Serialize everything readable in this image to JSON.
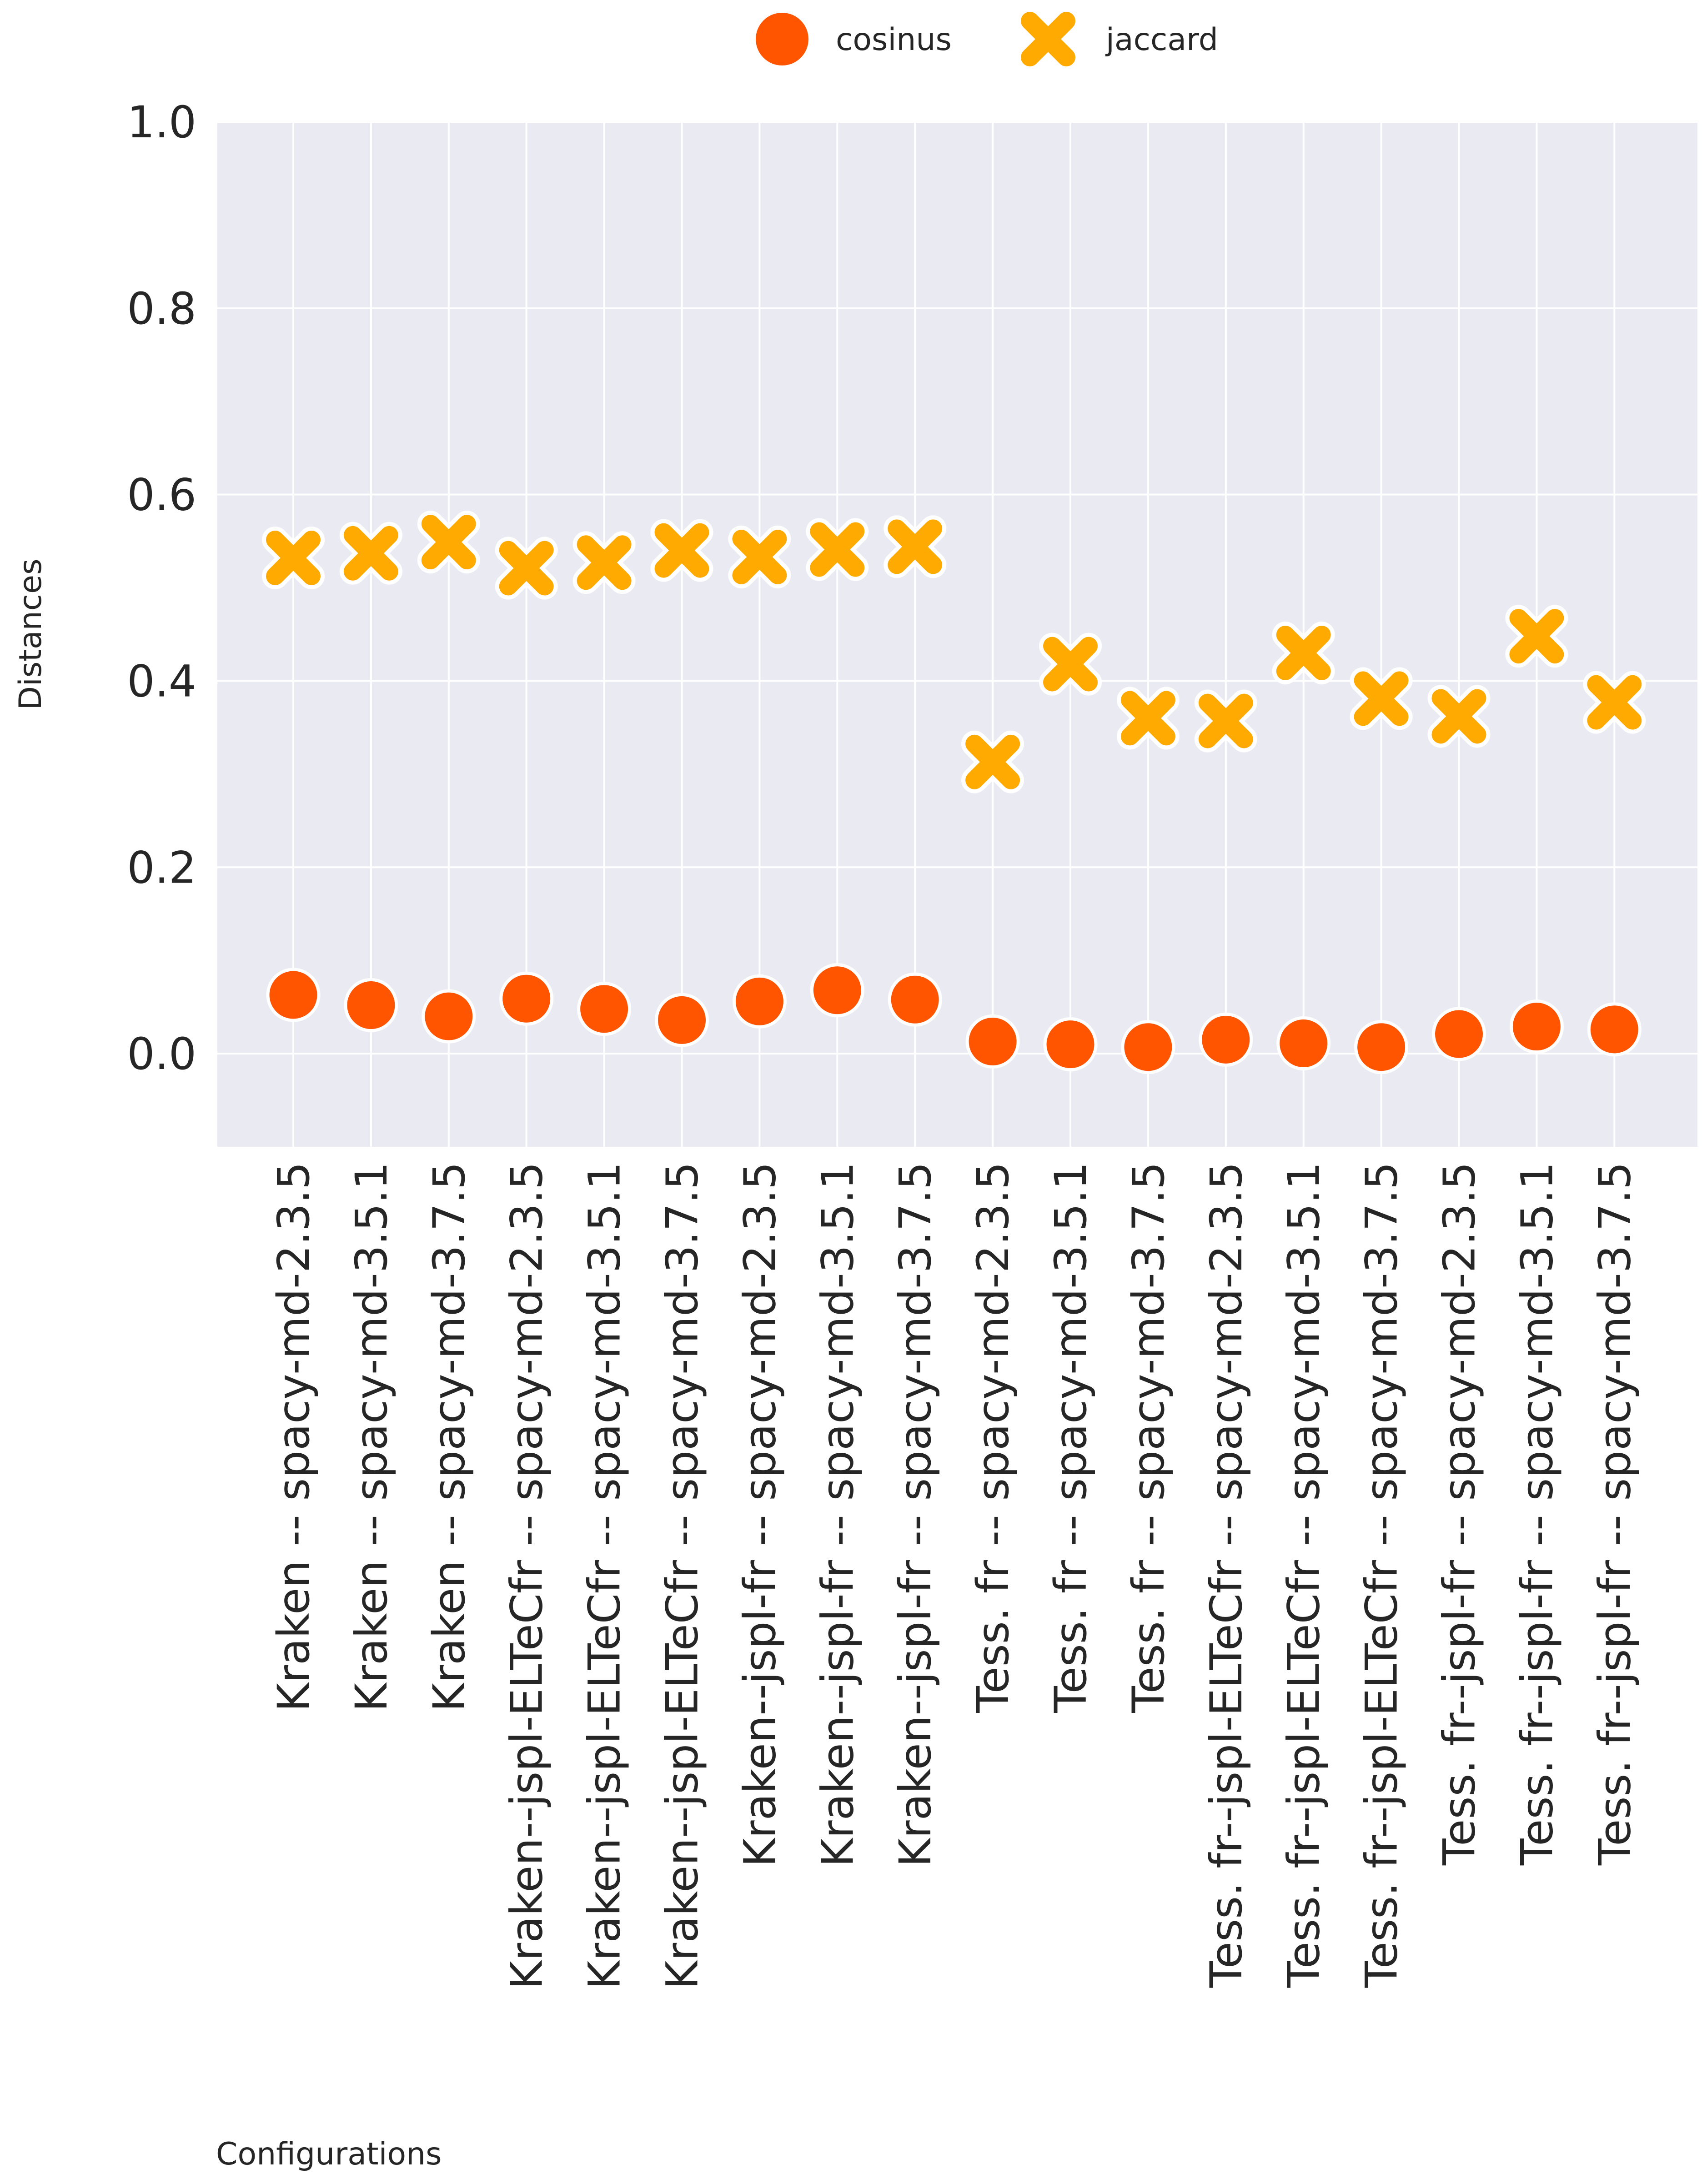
{
  "chart_data": {
    "type": "scatter",
    "title": "",
    "xlabel": "Configurations",
    "ylabel": "Distances",
    "ylim": [
      -0.1,
      1.0
    ],
    "yticks": [
      "0.0",
      "0.2",
      "0.4",
      "0.6",
      "0.8",
      "1.0"
    ],
    "grid": true,
    "legend_position": "top-center",
    "categories": [
      "Kraken -- spacy-md-2.3.5",
      "Kraken -- spacy-md-3.5.1",
      "Kraken -- spacy-md-3.7.5",
      "Kraken--jspl-ELTeCfr -- spacy-md-2.3.5",
      "Kraken--jspl-ELTeCfr -- spacy-md-3.5.1",
      "Kraken--jspl-ELTeCfr -- spacy-md-3.7.5",
      "Kraken--jspl-fr -- spacy-md-2.3.5",
      "Kraken--jspl-fr -- spacy-md-3.5.1",
      "Kraken--jspl-fr -- spacy-md-3.7.5",
      "Tess. fr -- spacy-md-2.3.5",
      "Tess. fr -- spacy-md-3.5.1",
      "Tess. fr -- spacy-md-3.7.5",
      "Tess. fr--jspl-ELTeCfr -- spacy-md-2.3.5",
      "Tess. fr--jspl-ELTeCfr -- spacy-md-3.5.1",
      "Tess. fr--jspl-ELTeCfr -- spacy-md-3.7.5",
      "Tess. fr--jspl-fr -- spacy-md-2.3.5",
      "Tess. fr--jspl-fr -- spacy-md-3.5.1",
      "Tess. fr--jspl-fr -- spacy-md-3.7.5"
    ],
    "series": [
      {
        "name": "cosinus",
        "marker": "circle",
        "color": "#ff5500",
        "values": [
          0.063,
          0.052,
          0.04,
          0.059,
          0.048,
          0.036,
          0.056,
          0.068,
          0.058,
          0.013,
          0.01,
          0.007,
          0.015,
          0.011,
          0.007,
          0.021,
          0.029,
          0.026
        ]
      },
      {
        "name": "jaccard",
        "marker": "x",
        "color": "#ffaa00",
        "values": [
          0.532,
          0.537,
          0.549,
          0.521,
          0.527,
          0.54,
          0.533,
          0.541,
          0.544,
          0.313,
          0.418,
          0.36,
          0.357,
          0.43,
          0.381,
          0.362,
          0.448,
          0.377
        ]
      }
    ]
  }
}
